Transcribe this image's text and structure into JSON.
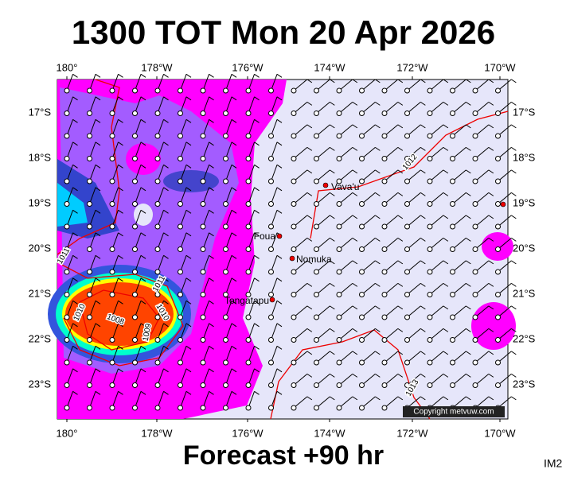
{
  "header": {
    "title": "1300 TOT Mon 20 Apr 2026"
  },
  "map": {
    "lon_labels": [
      "180°",
      "178°W",
      "176°W",
      "174°W",
      "172°W",
      "170°W"
    ],
    "lat_labels": [
      "17°S",
      "18°S",
      "19°S",
      "20°S",
      "21°S",
      "22°S",
      "23°S"
    ],
    "places": [
      "Vava'u",
      "Foua",
      "Nomuka",
      "Tongatapu"
    ],
    "isobar_labels": [
      "1012",
      "1011",
      "1011",
      "1010",
      "1008",
      "1009",
      "1010",
      "1013"
    ],
    "copyright": "Copyright metvuw.com"
  },
  "footer": {
    "forecast": "Forecast +90 hr",
    "image_id": "IM2"
  }
}
